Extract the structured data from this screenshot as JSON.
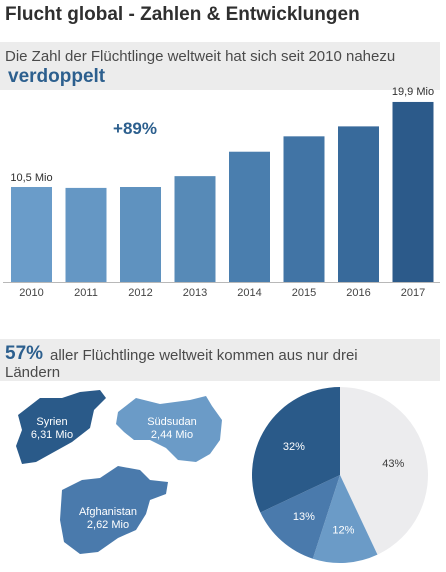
{
  "header": {
    "title": "Flucht global - Zahlen & Entwicklungen",
    "subtitle": "Die Zahl der Flüchtlinge weltweit hat sich seit 2010 nahezu",
    "subtitle_emph": "verdoppelt"
  },
  "section2": {
    "pct": "57%",
    "text_line1": "aller Flüchtlinge weltweit kommen aus nur drei",
    "text_line2": "Ländern"
  },
  "chart_data": [
    {
      "type": "bar",
      "categories": [
        "2010",
        "2011",
        "2012",
        "2013",
        "2014",
        "2015",
        "2016",
        "2017"
      ],
      "values": [
        10.5,
        10.4,
        10.5,
        11.7,
        14.4,
        16.1,
        17.2,
        19.9
      ],
      "value_labels": {
        "first": "10,5 Mio",
        "last": "19,9 Mio"
      },
      "annotation": "+89%",
      "ylim": [
        0,
        21
      ],
      "colors": [
        "#6a9cc9",
        "#6597c4",
        "#5f92bf",
        "#578ab7",
        "#4a7eae",
        "#4174a5",
        "#386a9b",
        "#2c5a8a"
      ]
    },
    {
      "type": "pie",
      "slices": [
        {
          "label": "43%",
          "value": 43,
          "color": "#ececee"
        },
        {
          "label": "12%",
          "value": 12,
          "color": "#6b9bc7"
        },
        {
          "label": "13%",
          "value": 13,
          "color": "#4a7aac"
        },
        {
          "label": "32%",
          "value": 32,
          "color": "#2a5a89"
        }
      ]
    }
  ],
  "countries": [
    {
      "name": "Syrien",
      "amount": "6,31 Mio",
      "color": "#2a5a89"
    },
    {
      "name": "Südsudan",
      "amount": "2,44 Mio",
      "color": "#6b9bc7"
    },
    {
      "name": "Afghanistan",
      "amount": "2,62 Mio",
      "color": "#4a7aac"
    }
  ]
}
